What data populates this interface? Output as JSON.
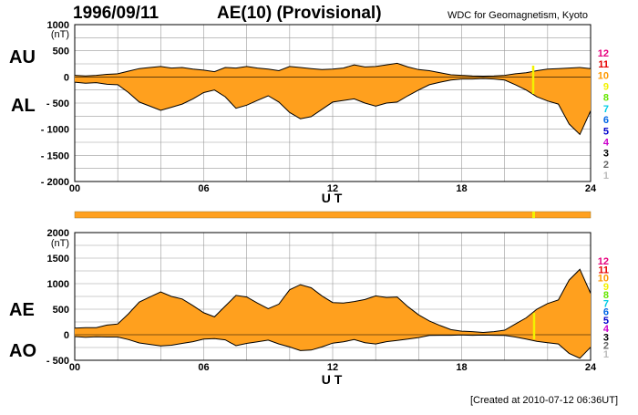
{
  "header": {
    "date": "1996/09/11",
    "title": "AE(10) (Provisional)",
    "source": "WDC for Geomagnetism, Kyoto"
  },
  "footer": {
    "created": "[Created at 2010-07-12 06:36UT]"
  },
  "colors": {
    "fill": "#FFA01E",
    "line": "#000000",
    "grid": "#9a9a9a",
    "yellow_marker": "#F2F200"
  },
  "station_scale": [
    {
      "label": "12",
      "color": "#E6007E"
    },
    {
      "label": "11",
      "color": "#E60000"
    },
    {
      "label": "10",
      "color": "#FF9900"
    },
    {
      "label": "9",
      "color": "#F2F200"
    },
    {
      "label": "8",
      "color": "#66E600"
    },
    {
      "label": "7",
      "color": "#00CCE6"
    },
    {
      "label": "6",
      "color": "#0066E6"
    },
    {
      "label": "5",
      "color": "#0000CC"
    },
    {
      "label": "4",
      "color": "#CC00CC"
    },
    {
      "label": "3",
      "color": "#000000"
    },
    {
      "label": "2",
      "color": "#666666"
    },
    {
      "label": "1",
      "color": "#BBBBBB"
    }
  ],
  "chart_data": [
    {
      "type": "area",
      "name": "AU/AL",
      "ylabel_top": "AU",
      "ylabel_bottom": "AL",
      "unit": "(nT)",
      "xlabel": "U T",
      "xlim": [
        0,
        24
      ],
      "ylim": [
        -2000,
        1000
      ],
      "x_ticks": [
        "00",
        "06",
        "12",
        "18",
        "24"
      ],
      "y_ticks": [
        "1000",
        "500",
        "0",
        "- 500",
        "- 1000",
        "- 1500",
        "- 2000"
      ],
      "x": [
        0,
        0.5,
        1,
        1.5,
        2,
        2.5,
        3,
        3.5,
        4,
        4.5,
        5,
        5.5,
        6,
        6.5,
        7,
        7.5,
        8,
        8.5,
        9,
        9.5,
        10,
        10.5,
        11,
        11.5,
        12,
        12.5,
        13,
        13.5,
        14,
        14.5,
        15,
        15.5,
        16,
        16.5,
        17,
        17.5,
        18,
        18.5,
        19,
        19.5,
        20,
        20.5,
        21,
        21.5,
        22,
        22.5,
        23,
        23.5,
        24
      ],
      "series": [
        {
          "name": "AU",
          "values": [
            30,
            20,
            30,
            50,
            60,
            110,
            160,
            180,
            200,
            170,
            180,
            150,
            130,
            100,
            180,
            170,
            200,
            170,
            150,
            120,
            200,
            180,
            160,
            140,
            150,
            170,
            230,
            190,
            200,
            230,
            260,
            190,
            140,
            120,
            80,
            40,
            30,
            20,
            15,
            20,
            30,
            60,
            80,
            120,
            150,
            160,
            170,
            180,
            160
          ]
        },
        {
          "name": "AL",
          "values": [
            -100,
            -120,
            -110,
            -140,
            -150,
            -300,
            -480,
            -560,
            -640,
            -580,
            -520,
            -420,
            -300,
            -250,
            -380,
            -600,
            -540,
            -450,
            -360,
            -480,
            -680,
            -800,
            -760,
            -620,
            -480,
            -450,
            -420,
            -500,
            -560,
            -500,
            -480,
            -360,
            -250,
            -150,
            -100,
            -60,
            -40,
            -40,
            -30,
            -40,
            -60,
            -150,
            -250,
            -380,
            -460,
            -520,
            -900,
            -1100,
            -650
          ]
        }
      ]
    },
    {
      "type": "area",
      "name": "AE/AO",
      "ylabel_top": "AE",
      "ylabel_bottom": "AO",
      "unit": "(nT)",
      "xlabel": "U T",
      "xlim": [
        0,
        24
      ],
      "ylim": [
        -500,
        2000
      ],
      "x_ticks": [
        "00",
        "06",
        "12",
        "18",
        "24"
      ],
      "y_ticks": [
        "2000",
        "1500",
        "1000",
        "500",
        "0",
        "- 500"
      ],
      "x": [
        0,
        0.5,
        1,
        1.5,
        2,
        2.5,
        3,
        3.5,
        4,
        4.5,
        5,
        5.5,
        6,
        6.5,
        7,
        7.5,
        8,
        8.5,
        9,
        9.5,
        10,
        10.5,
        11,
        11.5,
        12,
        12.5,
        13,
        13.5,
        14,
        14.5,
        15,
        15.5,
        16,
        16.5,
        17,
        17.5,
        18,
        18.5,
        19,
        19.5,
        20,
        20.5,
        21,
        21.5,
        22,
        22.5,
        23,
        23.5,
        24
      ],
      "series": [
        {
          "name": "AE",
          "values": [
            130,
            140,
            140,
            190,
            210,
            410,
            640,
            740,
            840,
            750,
            700,
            570,
            430,
            350,
            560,
            770,
            740,
            620,
            510,
            600,
            880,
            980,
            920,
            760,
            630,
            620,
            650,
            690,
            760,
            730,
            740,
            550,
            390,
            270,
            180,
            100,
            70,
            60,
            45,
            60,
            90,
            210,
            330,
            500,
            610,
            680,
            1070,
            1280,
            810
          ]
        },
        {
          "name": "AO",
          "values": [
            -35,
            -50,
            -40,
            -45,
            -45,
            -95,
            -160,
            -190,
            -220,
            -205,
            -170,
            -135,
            -85,
            -75,
            -100,
            -215,
            -170,
            -140,
            -105,
            -180,
            -240,
            -310,
            -300,
            -240,
            -165,
            -140,
            -95,
            -155,
            -180,
            -135,
            -110,
            -85,
            -55,
            -15,
            -10,
            -10,
            -5,
            -10,
            -7,
            -10,
            -15,
            -45,
            -85,
            -130,
            -155,
            -180,
            -365,
            -460,
            -245
          ]
        }
      ]
    }
  ]
}
